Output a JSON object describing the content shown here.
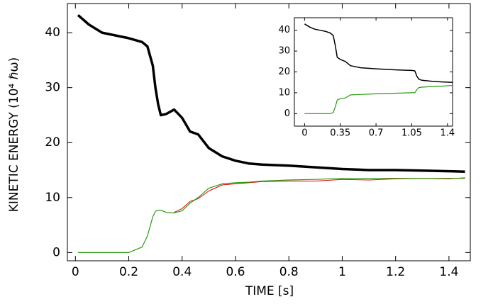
{
  "chart_data": [
    {
      "type": "line",
      "xlabel": "TIME [s]",
      "ylabel": "KINETIC ENERGY (10⁴ ℏω)",
      "x": [
        0.01,
        0.05,
        0.1,
        0.15,
        0.2,
        0.25,
        0.27,
        0.29,
        0.3,
        0.31,
        0.32,
        0.34,
        0.37,
        0.4,
        0.43,
        0.46,
        0.5,
        0.55,
        0.6,
        0.65,
        0.7,
        0.8,
        0.9,
        1.0,
        1.1,
        1.2,
        1.3,
        1.4,
        1.46
      ],
      "series": [
        {
          "color": "#000000",
          "linewidth": 3.5,
          "values": [
            43.2,
            41.5,
            40,
            39.5,
            39,
            38.3,
            37.5,
            34,
            30,
            27,
            25,
            25.2,
            26,
            24.5,
            22,
            21.5,
            19,
            17.5,
            16.7,
            16.2,
            16,
            15.8,
            15.5,
            15.2,
            15,
            15,
            14.9,
            14.8,
            14.7
          ]
        },
        {
          "color": "#e00000",
          "linewidth": 1,
          "values": [
            null,
            null,
            null,
            null,
            null,
            null,
            null,
            null,
            null,
            null,
            null,
            null,
            7.3,
            8,
            9.3,
            9.8,
            11.2,
            12.3,
            12.5,
            12.7,
            12.9,
            13,
            13,
            13.3,
            13.2,
            13.4,
            13.5,
            13.4,
            13.6
          ]
        },
        {
          "color": "#2a9a10",
          "linewidth": 1.2,
          "values": [
            0,
            0,
            0,
            0,
            0,
            1,
            3,
            6.5,
            7.5,
            7.7,
            7.7,
            7.3,
            7.2,
            7.6,
            9,
            10,
            11.7,
            12.5,
            12.7,
            12.8,
            13,
            13.2,
            13.3,
            13.5,
            13.5,
            13.5,
            13.5,
            13.5,
            13.5
          ]
        }
      ],
      "xlim": [
        -0.03,
        1.48
      ],
      "ylim": [
        -1.5,
        45.3
      ],
      "xticks": [
        0,
        0.2,
        0.4,
        0.6,
        0.8,
        1,
        1.2,
        1.4
      ],
      "yticks": [
        0,
        10,
        20,
        30,
        40
      ],
      "grid": false
    },
    {
      "type": "line",
      "x": [
        0,
        0.05,
        0.1,
        0.15,
        0.2,
        0.25,
        0.28,
        0.3,
        0.32,
        0.35,
        0.4,
        0.45,
        0.55,
        0.7,
        0.9,
        1.05,
        1.08,
        1.1,
        1.12,
        1.15,
        1.25,
        1.35,
        1.45
      ],
      "series": [
        {
          "color": "#000000",
          "linewidth": 1.5,
          "values": [
            43,
            41.5,
            40.5,
            40,
            39.5,
            38.7,
            37.5,
            33,
            27,
            26,
            25,
            23,
            22,
            21.5,
            21,
            20.7,
            20.5,
            18,
            16.5,
            16,
            15.5,
            15.2,
            15
          ]
        },
        {
          "color": "#2a9a10",
          "linewidth": 1.2,
          "values": [
            0,
            0,
            0,
            0,
            0,
            0,
            0.5,
            3,
            6.5,
            7.2,
            7.5,
            9,
            9.2,
            9.5,
            9.8,
            10,
            10,
            11.5,
            12.5,
            12.7,
            13,
            13.2,
            13.5
          ]
        }
      ],
      "xlim": [
        -0.1,
        1.45
      ],
      "ylim": [
        -6,
        46
      ],
      "xticks": [
        0,
        0.35,
        0.7,
        1.05,
        1.4
      ],
      "yticks": [
        0,
        10,
        20,
        30,
        40
      ],
      "grid": false
    }
  ]
}
